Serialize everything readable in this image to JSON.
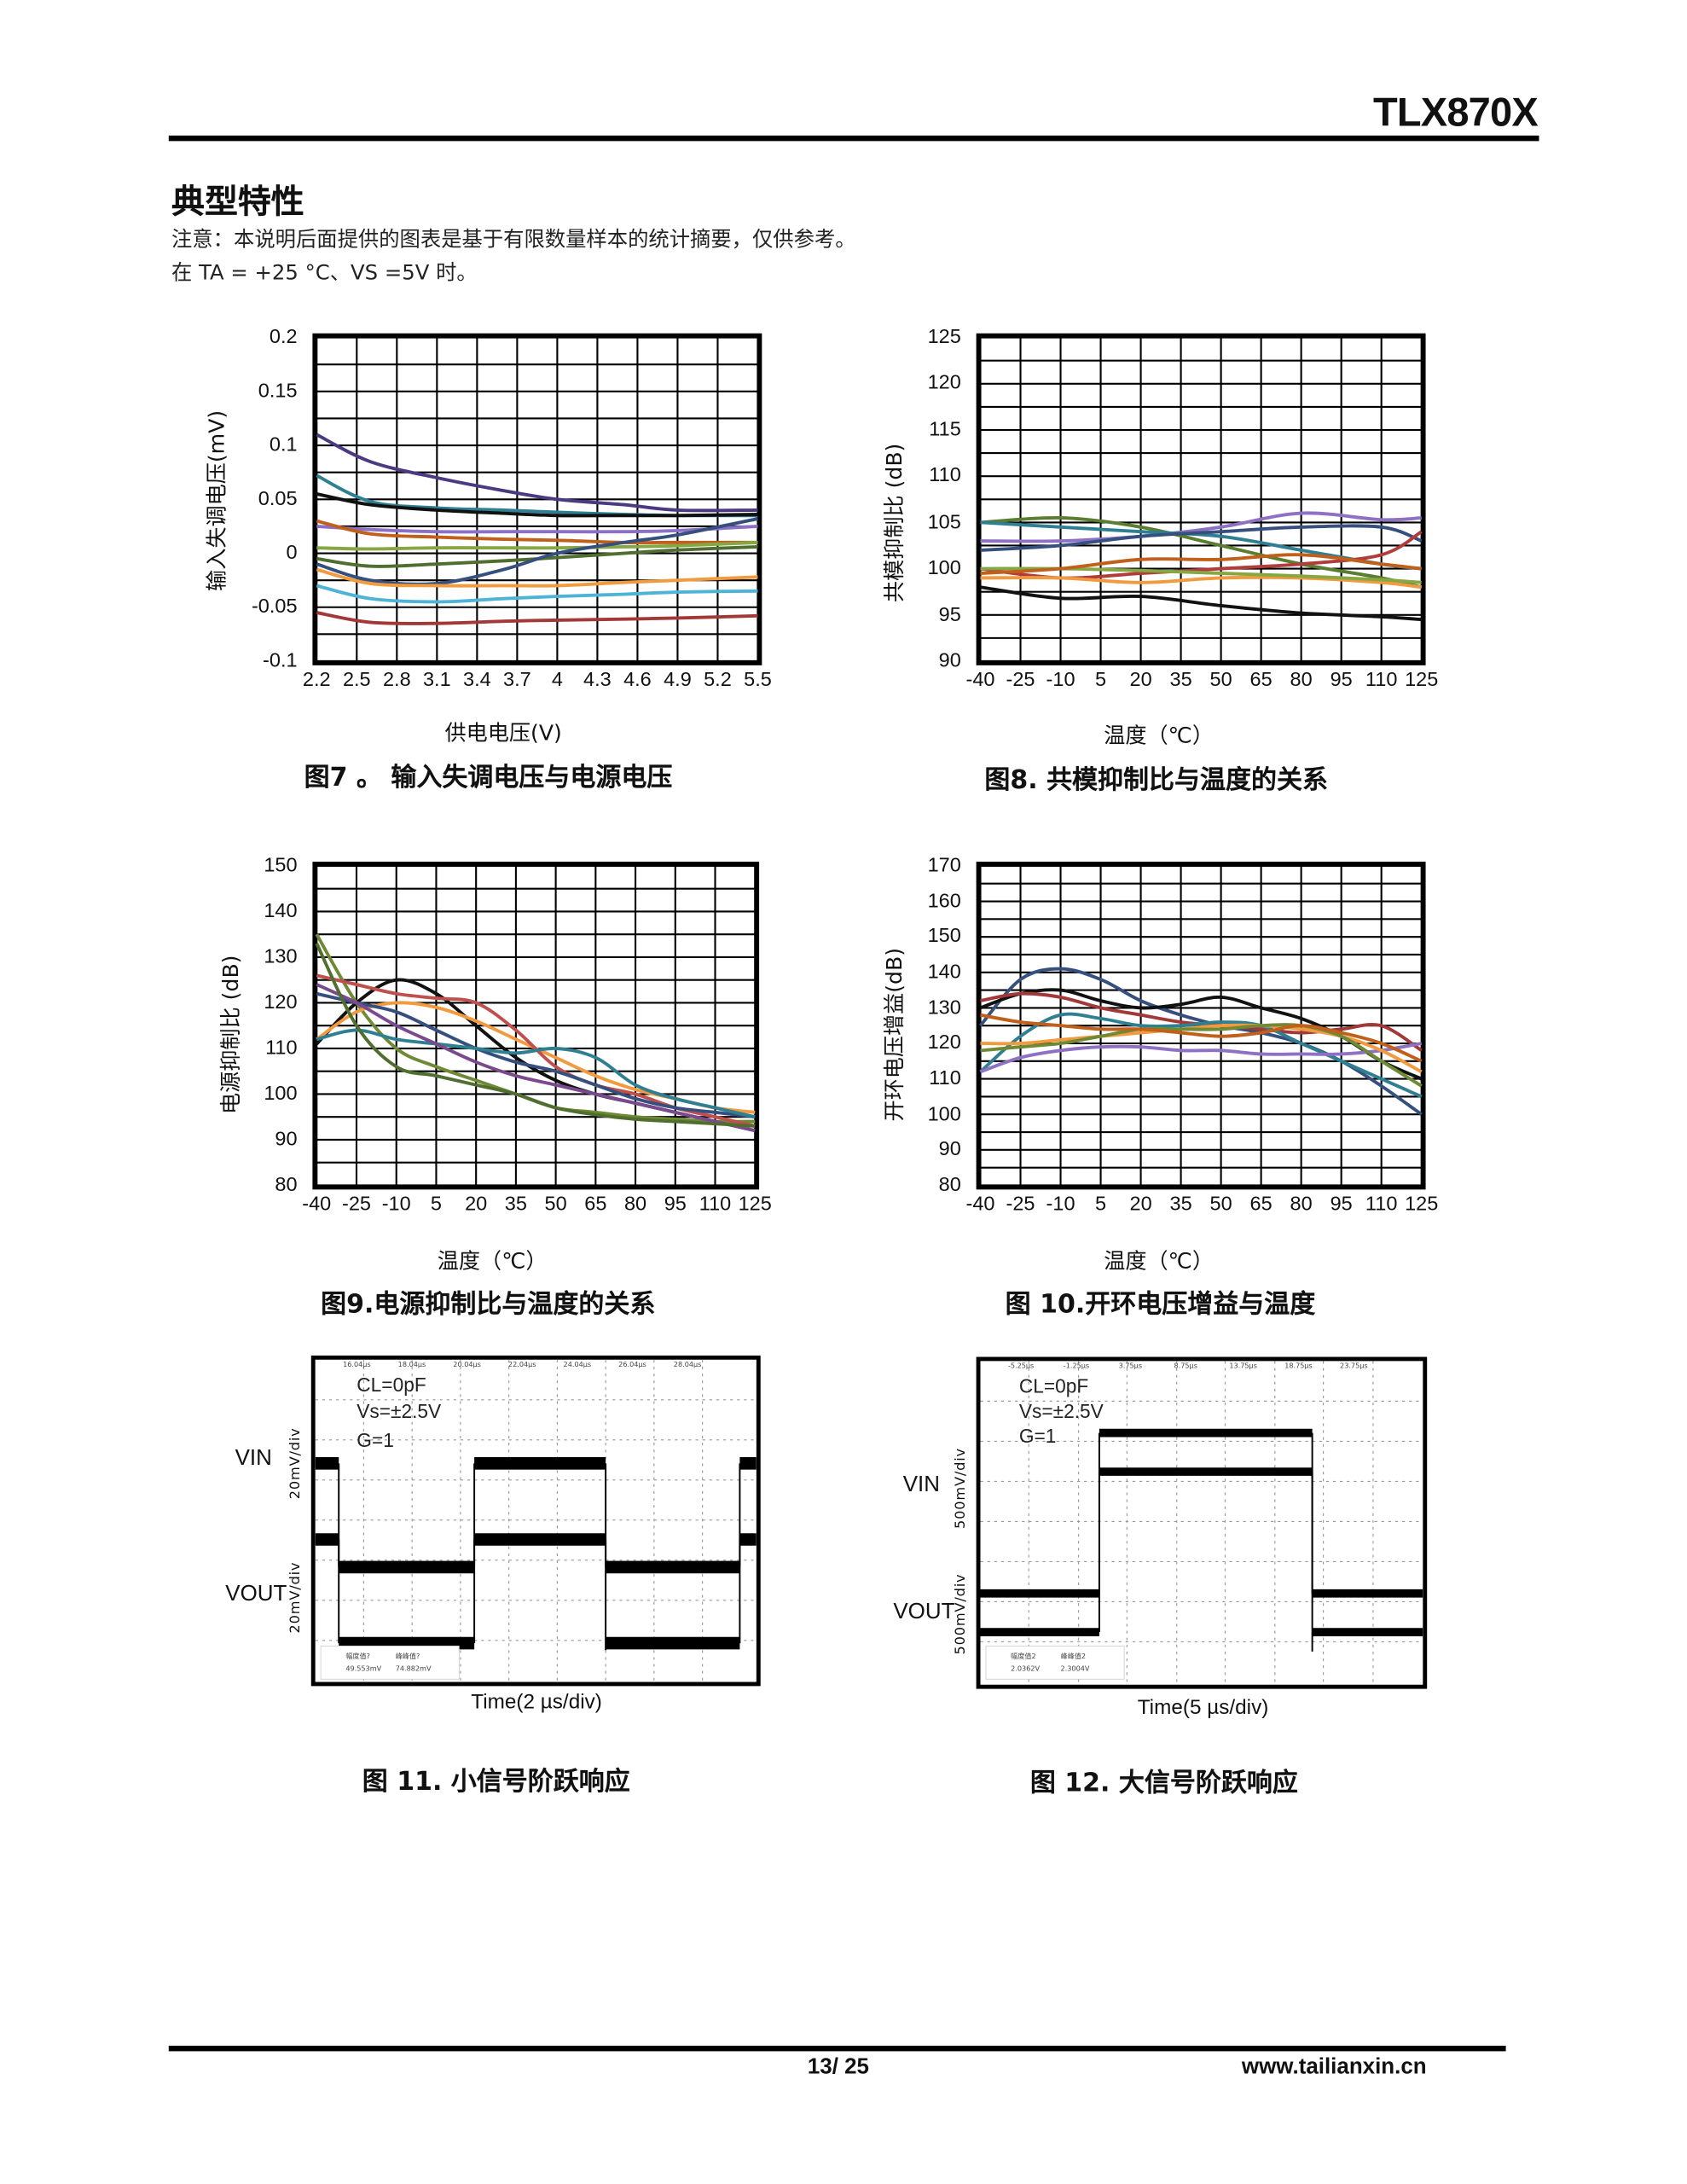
{
  "header": {
    "part_number": "TLX870X"
  },
  "section": {
    "title": "典型特性",
    "note": "注意：本说明后面提供的图表是基于有限数量样本的统计摘要，仅供参考。",
    "conditions": "在 TA = +25 °C、VS =5V 时。"
  },
  "chart_data": [
    {
      "type": "line",
      "title": "图7 。 输入失调电压与电源电压",
      "xlabel": "供电电压(V)",
      "ylabel": "输入失调电压(mV)",
      "xlim": [
        2.2,
        5.5
      ],
      "ylim": [
        -0.1,
        0.2
      ],
      "x_ticks": [
        "2.2",
        "2.5",
        "2.8",
        "3.1",
        "3.4",
        "3.7",
        "4",
        "4.3",
        "4.6",
        "4.9",
        "5.2",
        "5.5"
      ],
      "y_ticks": [
        "-0.1",
        "-0.05",
        "0",
        "0.05",
        "0.1",
        "0.15",
        "0.2"
      ],
      "y_grid_step": 0.025,
      "grid": true,
      "x": [
        2.2,
        2.6,
        3.1,
        3.6,
        4.0,
        4.5,
        4.9,
        5.5
      ],
      "series": [
        {
          "color": "#4b3a82",
          "values": [
            0.11,
            0.085,
            0.07,
            0.058,
            0.05,
            0.045,
            0.04,
            0.04
          ]
        },
        {
          "color": "#2f7f93",
          "values": [
            0.072,
            0.048,
            0.042,
            0.04,
            0.038,
            0.036,
            0.035,
            0.035
          ]
        },
        {
          "color": "#111111",
          "values": [
            0.055,
            0.045,
            0.04,
            0.037,
            0.035,
            0.035,
            0.035,
            0.036
          ]
        },
        {
          "color": "#8c6fc6",
          "values": [
            0.025,
            0.022,
            0.02,
            0.02,
            0.02,
            0.02,
            0.021,
            0.025
          ]
        },
        {
          "color": "#c0601b",
          "values": [
            0.03,
            0.018,
            0.015,
            0.013,
            0.012,
            0.01,
            0.01,
            0.01
          ]
        },
        {
          "color": "#86a844",
          "values": [
            0.005,
            0.004,
            0.005,
            0.005,
            0.005,
            0.006,
            0.007,
            0.01
          ]
        },
        {
          "color": "#4f6e2f",
          "values": [
            -0.005,
            -0.012,
            -0.01,
            -0.007,
            -0.004,
            0.0,
            0.003,
            0.006
          ]
        },
        {
          "color": "#35507e",
          "values": [
            -0.01,
            -0.025,
            -0.028,
            -0.015,
            0.0,
            0.01,
            0.017,
            0.032
          ]
        },
        {
          "color": "#f29a3e",
          "values": [
            -0.015,
            -0.028,
            -0.03,
            -0.03,
            -0.03,
            -0.027,
            -0.025,
            -0.022
          ]
        },
        {
          "color": "#4db4d8",
          "values": [
            -0.03,
            -0.042,
            -0.045,
            -0.042,
            -0.04,
            -0.038,
            -0.036,
            -0.035
          ]
        },
        {
          "color": "#a33838",
          "values": [
            -0.055,
            -0.064,
            -0.065,
            -0.063,
            -0.062,
            -0.061,
            -0.06,
            -0.058
          ]
        }
      ]
    },
    {
      "type": "line",
      "title": "图8. 共模抑制比与温度的关系",
      "xlabel": "温度（℃）",
      "ylabel": "共模抑制比 (dB)",
      "xlim": [
        -40,
        125
      ],
      "ylim": [
        90,
        125
      ],
      "x_ticks": [
        "-40",
        "-25",
        "-10",
        "5",
        "20",
        "35",
        "50",
        "65",
        "80",
        "95",
        "110",
        "125"
      ],
      "y_ticks": [
        "90",
        "95",
        "100",
        "105",
        "110",
        "115",
        "120",
        "125"
      ],
      "y_grid_step": 2.5,
      "grid": true,
      "x": [
        -40,
        -10,
        20,
        50,
        80,
        110,
        125
      ],
      "series": [
        {
          "color": "#111111",
          "values": [
            98,
            96.8,
            97,
            96,
            95.2,
            94.8,
            94.5
          ]
        },
        {
          "color": "#8e70c4",
          "values": [
            103,
            103,
            103.5,
            104.5,
            106,
            105.3,
            105.5
          ]
        },
        {
          "color": "#5a7d2f",
          "values": [
            105,
            105.5,
            104.5,
            102.5,
            100.5,
            99,
            98
          ]
        },
        {
          "color": "#2f7f93",
          "values": [
            105,
            104.5,
            104,
            103.5,
            102,
            100.5,
            100
          ]
        },
        {
          "color": "#35507e",
          "values": [
            102,
            102.5,
            103.5,
            104,
            104.5,
            104.5,
            103
          ]
        },
        {
          "color": "#b23b3b",
          "values": [
            100,
            99,
            99.5,
            100,
            100.5,
            101.5,
            104
          ]
        },
        {
          "color": "#f29a3e",
          "values": [
            99,
            99,
            98.5,
            99,
            99,
            98.5,
            98
          ]
        },
        {
          "color": "#86a844",
          "values": [
            100,
            100,
            99.8,
            99.5,
            99.2,
            98.8,
            98.5
          ]
        },
        {
          "color": "#c0601b",
          "values": [
            99.5,
            100,
            101,
            101,
            101.5,
            100.5,
            100
          ]
        }
      ]
    },
    {
      "type": "line",
      "title": "图9.电源抑制比与温度的关系",
      "xlabel": "温度（℃）",
      "ylabel": "电源抑制比 (dB)",
      "xlim": [
        -40,
        125
      ],
      "ylim": [
        80,
        150
      ],
      "x_ticks": [
        "-40",
        "-25",
        "-10",
        "5",
        "20",
        "35",
        "50",
        "65",
        "80",
        "95",
        "110",
        "125"
      ],
      "y_ticks": [
        "80",
        "90",
        "100",
        "110",
        "120",
        "130",
        "140",
        "150"
      ],
      "y_grid_step": 5,
      "grid": true,
      "x": [
        -40,
        -25,
        -10,
        5,
        20,
        35,
        50,
        65,
        80,
        95,
        110,
        125
      ],
      "series": [
        {
          "color": "#111111",
          "values": [
            111,
            120,
            125,
            122,
            115,
            108,
            103,
            100,
            98,
            96,
            94,
            92
          ]
        },
        {
          "color": "#6f8a35",
          "values": [
            135,
            120,
            110,
            106,
            103,
            100,
            97,
            96,
            95,
            94.5,
            94,
            94
          ]
        },
        {
          "color": "#f29a3e",
          "values": [
            112,
            118,
            120,
            119,
            116,
            112,
            108,
            104,
            101,
            99,
            97,
            96
          ]
        },
        {
          "color": "#c0504d",
          "values": [
            126,
            124,
            122,
            121,
            120,
            114,
            106,
            102,
            100,
            97,
            95,
            93
          ]
        },
        {
          "color": "#35507e",
          "values": [
            122,
            120,
            118,
            114,
            110,
            107,
            105,
            102,
            99,
            97,
            96,
            95
          ]
        },
        {
          "color": "#2f7f93",
          "values": [
            112,
            114,
            112,
            111,
            110,
            109,
            110,
            108,
            102,
            99,
            97,
            95
          ]
        },
        {
          "color": "#7b4a8e",
          "values": [
            124,
            120,
            115,
            111,
            107,
            104,
            102,
            100,
            98,
            96,
            94,
            92
          ]
        },
        {
          "color": "#4f6e2f",
          "values": [
            133,
            115,
            106,
            104,
            102,
            100,
            97,
            95.5,
            94.5,
            94,
            93.5,
            93
          ]
        }
      ]
    },
    {
      "type": "line",
      "title": "图 10.开环电压增益与温度",
      "xlabel": "温度（℃）",
      "ylabel": "开环电压增益(dB)",
      "xlim": [
        -40,
        125
      ],
      "ylim": [
        80,
        170
      ],
      "x_ticks": [
        "-40",
        "-25",
        "-10",
        "5",
        "20",
        "35",
        "50",
        "65",
        "80",
        "95",
        "110",
        "125"
      ],
      "y_ticks": [
        "80",
        "90",
        "100",
        "110",
        "120",
        "130",
        "140",
        "150",
        "160",
        "170"
      ],
      "y_grid_step": 5,
      "grid": true,
      "x": [
        -40,
        -25,
        -10,
        5,
        20,
        35,
        50,
        65,
        80,
        95,
        110,
        125
      ],
      "series": [
        {
          "color": "#35507e",
          "values": [
            125,
            138,
            141,
            138,
            132,
            128,
            125,
            123,
            120,
            115,
            108,
            100
          ]
        },
        {
          "color": "#111111",
          "values": [
            130,
            134,
            135,
            132,
            130,
            131,
            133,
            130,
            127,
            122,
            115,
            110
          ]
        },
        {
          "color": "#a33838",
          "values": [
            132,
            134,
            133,
            130,
            128,
            126,
            125,
            124,
            123,
            124,
            125,
            118
          ]
        },
        {
          "color": "#2f7f93",
          "values": [
            112,
            122,
            128,
            127,
            125,
            125,
            126,
            125,
            120,
            115,
            110,
            105
          ]
        },
        {
          "color": "#8e70c4",
          "values": [
            112,
            116,
            118,
            119,
            119,
            118,
            118,
            117,
            117,
            117,
            118,
            120
          ]
        },
        {
          "color": "#f29a3e",
          "values": [
            120,
            120,
            121,
            122,
            123,
            124,
            125,
            125,
            124,
            122,
            118,
            112
          ]
        },
        {
          "color": "#6f8a35",
          "values": [
            118,
            119,
            120,
            122,
            124,
            124,
            124,
            125,
            125,
            122,
            115,
            108
          ]
        },
        {
          "color": "#c0601b",
          "values": [
            128,
            126,
            125,
            124,
            124,
            123,
            122,
            123,
            125,
            123,
            120,
            115
          ]
        }
      ]
    }
  ],
  "scopes": [
    {
      "title": "图 11. 小信号阶跃响应",
      "conditions": [
        "CL=0pF",
        "Vs=±2.5V",
        "G=1"
      ],
      "vin_label": "VIN",
      "vout_label": "VOUT",
      "vin_scale": "20mV/div",
      "vout_scale": "20mV/div",
      "time_label": "Time(2 µs/div)",
      "time_ticks": [
        "16.04µs",
        "18.04µs",
        "20.04µs",
        "22.04µs",
        "24.04µs",
        "26.04µs",
        "28.04µs"
      ],
      "meas": {
        "label1": "幅度值?",
        "value1": "49.553mV",
        "label2": "峰峰值?",
        "value2": "74.882mV"
      }
    },
    {
      "title": "图 12. 大信号阶跃响应",
      "conditions": [
        "CL=0pF",
        "Vs=±2.5V",
        "G=1"
      ],
      "vin_label": "VIN",
      "vout_label": "VOUT",
      "vin_scale": "500mV/div",
      "vout_scale": "500mV/div",
      "time_label": "Time(5 µs/div)",
      "time_ticks": [
        "-5.25µs",
        "-1.25µs",
        "3.75µs",
        "8.75µs",
        "13.75µs",
        "18.75µs",
        "23.75µs"
      ],
      "meas": {
        "label1": "幅度值2",
        "value1": "2.0362V",
        "label2": "峰峰值2",
        "value2": "2.3004V"
      }
    }
  ],
  "footer": {
    "page": "13/ 25",
    "website": "www.tailianxin.cn"
  }
}
